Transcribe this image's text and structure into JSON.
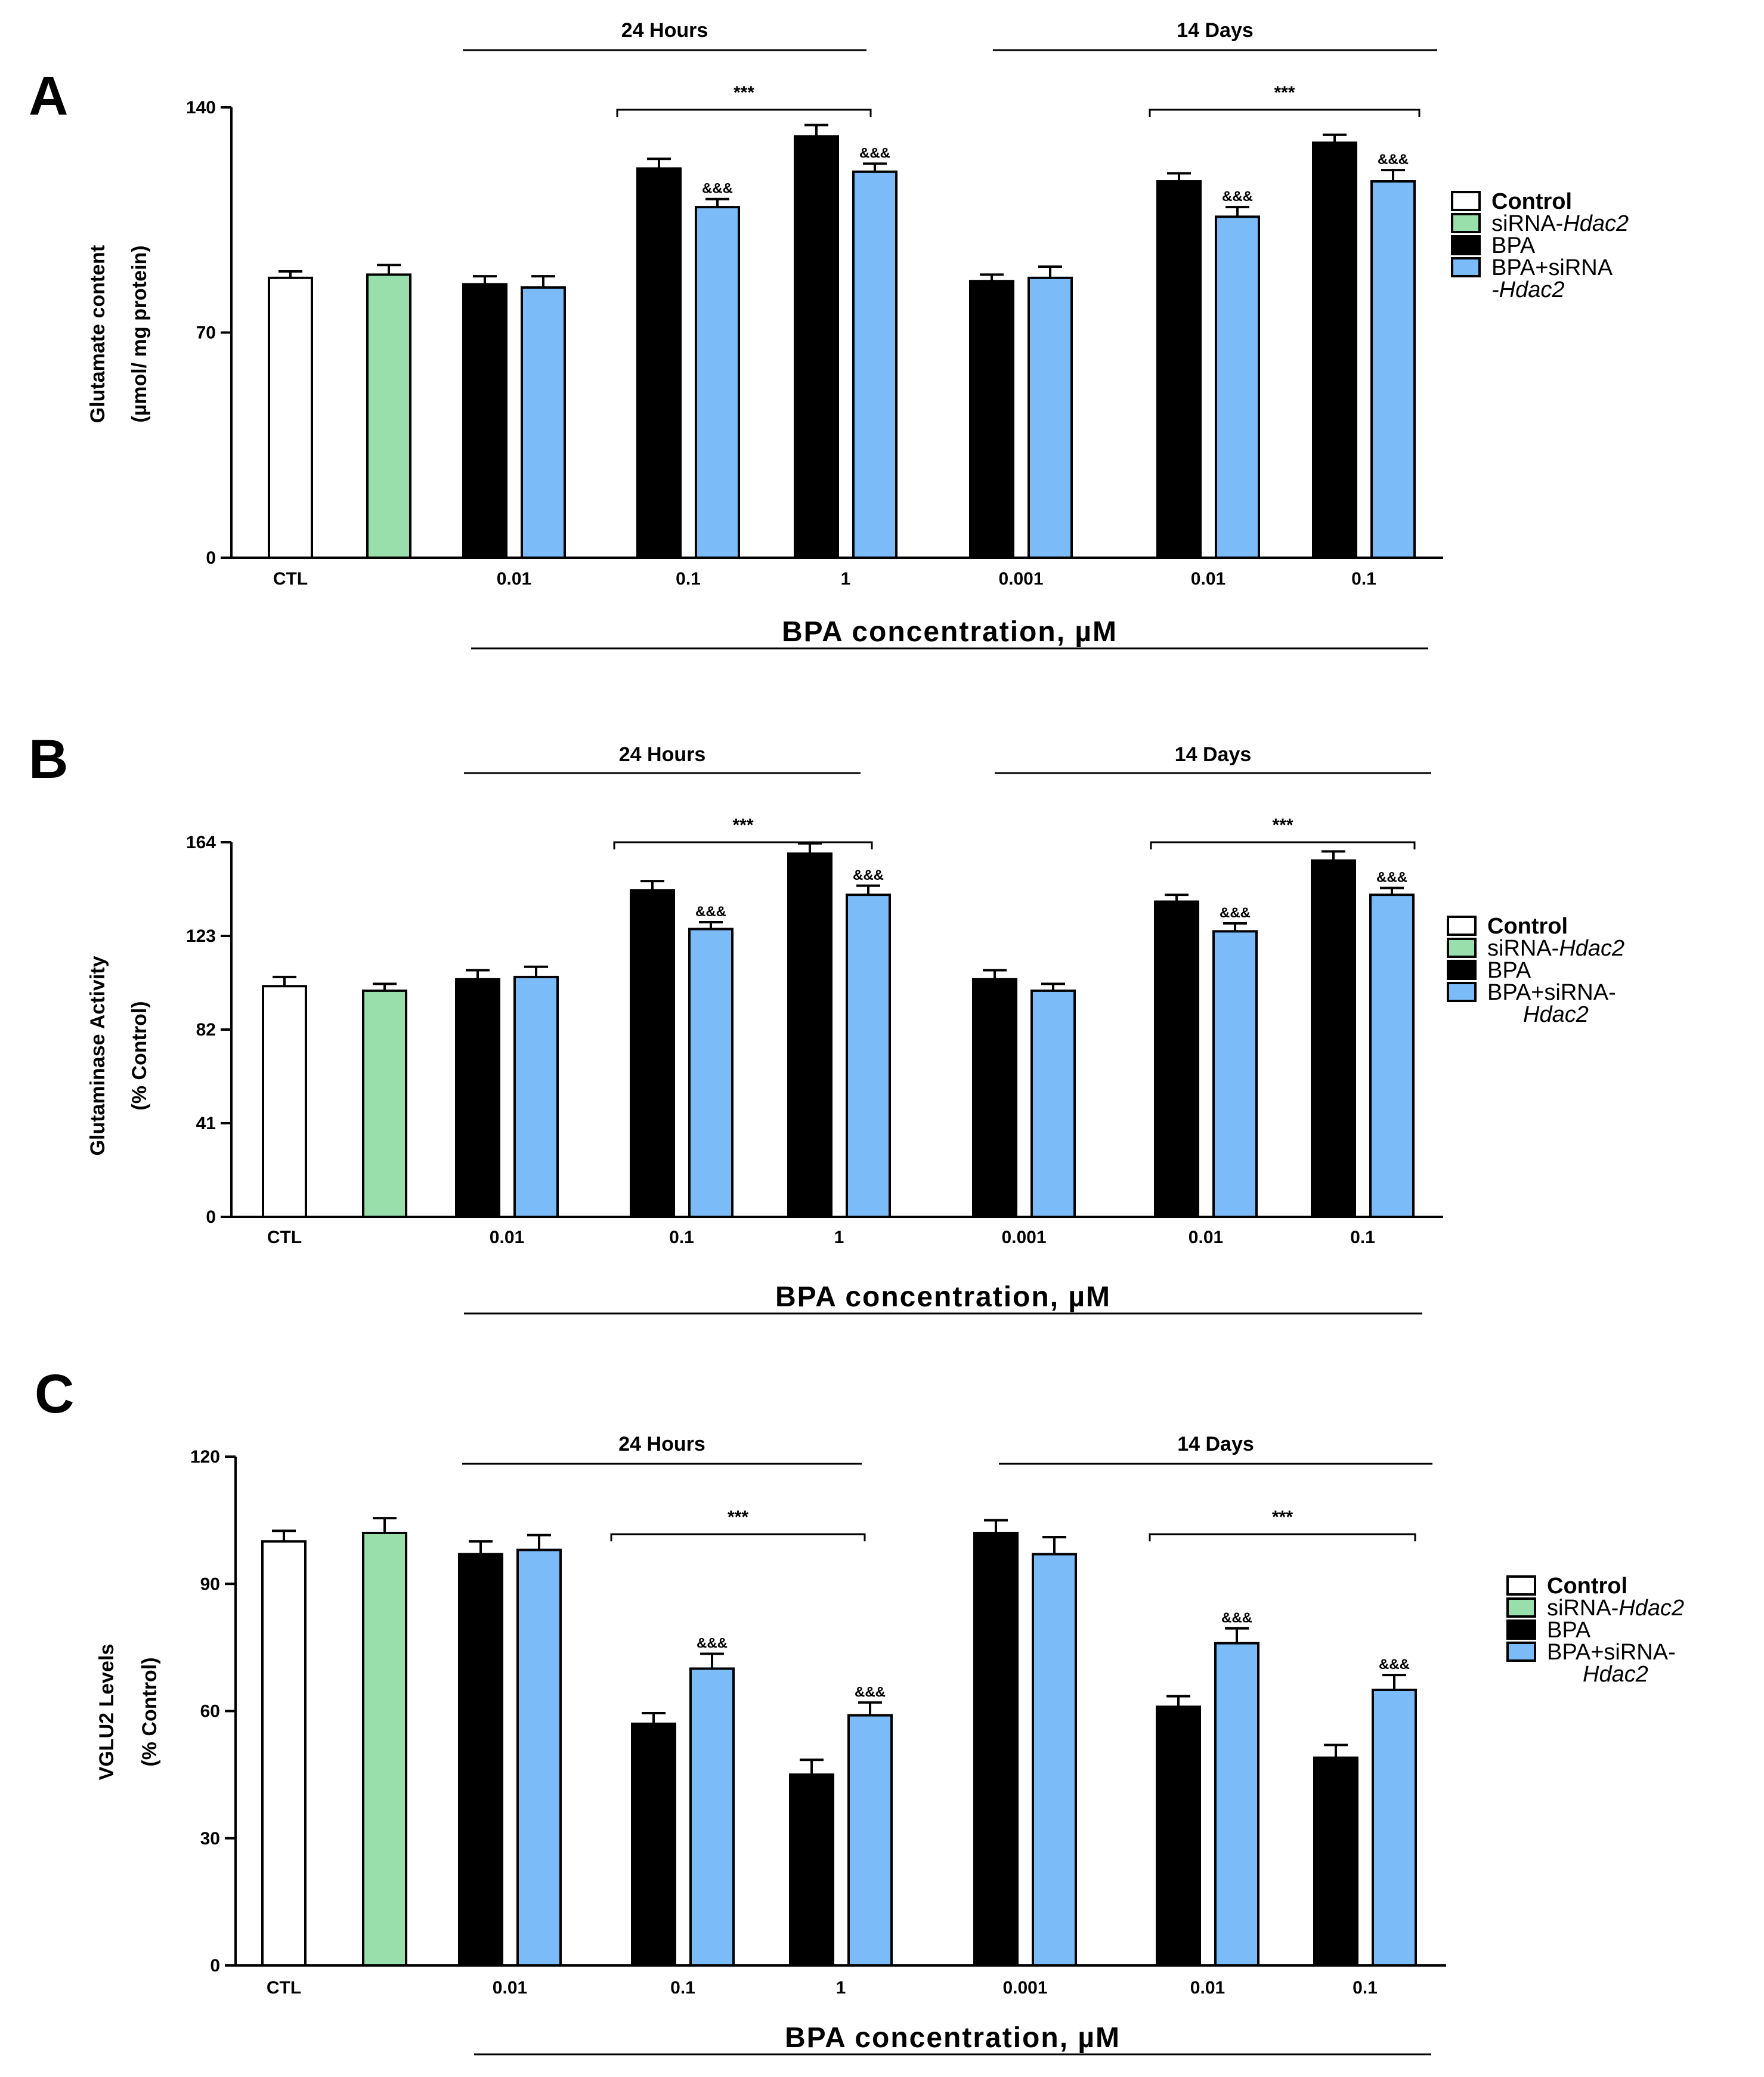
{
  "colors": {
    "control": "#ffffff",
    "siRNA": "#98dfac",
    "bpa": "#000000",
    "bpa_siRNA": "#7bbbf7"
  },
  "chart_data": [
    {
      "type": "bar",
      "panel": "A",
      "ylabel": "Glutamate content (µmol/ mg protein)",
      "ylabel_lines": [
        "Glutamate content",
        "(µmol/ mg protein)"
      ],
      "xlabel": "BPA concentration, µM",
      "ylim": [
        0,
        140
      ],
      "yticks": [
        0,
        70,
        140
      ],
      "groups": [
        "24 Hours",
        "14 Days"
      ],
      "significance": [
        "***",
        "***"
      ],
      "categories": [
        "CTL",
        "",
        "0.01",
        "0.1",
        "1",
        "0.001",
        "0.01",
        "0.1"
      ],
      "legend": [
        "Control",
        "siRNA-Hdac2",
        "BPA",
        "BPA+siRNA -Hdac2"
      ],
      "legend_lines": [
        [
          "Control"
        ],
        [
          "siRNA-",
          "Hdac2"
        ],
        [
          "BPA"
        ],
        [
          "BPA+siRNA",
          "-Hdac2"
        ]
      ],
      "bars": [
        {
          "series": "Control",
          "category": "CTL",
          "value": 87,
          "err": 2,
          "mark": ""
        },
        {
          "series": "siRNA-Hdac2",
          "category": "",
          "value": 88,
          "err": 3,
          "mark": ""
        },
        {
          "series": "BPA",
          "category": "0.01",
          "value": 85,
          "err": 2.5,
          "mark": ""
        },
        {
          "series": "BPA+siRNA-Hdac2",
          "category": "0.01",
          "value": 84,
          "err": 3.5,
          "mark": ""
        },
        {
          "series": "BPA",
          "category": "0.1",
          "value": 121,
          "err": 3,
          "mark": ""
        },
        {
          "series": "BPA+siRNA-Hdac2",
          "category": "0.1",
          "value": 109,
          "err": 2.5,
          "mark": "&&&"
        },
        {
          "series": "BPA",
          "category": "1",
          "value": 131,
          "err": 3.5,
          "mark": ""
        },
        {
          "series": "BPA+siRNA-Hdac2",
          "category": "1",
          "value": 120,
          "err": 2.5,
          "mark": "&&&"
        },
        {
          "series": "BPA",
          "category": "0.001",
          "value": 86,
          "err": 2,
          "mark": ""
        },
        {
          "series": "BPA+siRNA-Hdac2",
          "category": "0.001",
          "value": 87,
          "err": 3.5,
          "mark": ""
        },
        {
          "series": "BPA",
          "category": "0.01",
          "value": 117,
          "err": 2.5,
          "mark": ""
        },
        {
          "series": "BPA+siRNA-Hdac2",
          "category": "0.01",
          "value": 106,
          "err": 3,
          "mark": "&&&"
        },
        {
          "series": "BPA",
          "category": "0.1",
          "value": 129,
          "err": 2.5,
          "mark": ""
        },
        {
          "series": "BPA+siRNA-Hdac2",
          "category": "0.1",
          "value": 117,
          "err": 3.5,
          "mark": "&&&"
        }
      ]
    },
    {
      "type": "bar",
      "panel": "B",
      "ylabel": "Glutaminase Activity (% Control)",
      "ylabel_lines": [
        "Glutaminase Activity",
        "(% Control)"
      ],
      "xlabel": "BPA concentration, µM",
      "ylim": [
        0,
        164
      ],
      "yticks": [
        0,
        41,
        82,
        123,
        164
      ],
      "groups": [
        "24 Hours",
        "14 Days"
      ],
      "significance": [
        "***",
        "***"
      ],
      "categories": [
        "CTL",
        "",
        "0.01",
        "0.1",
        "1",
        "0.001",
        "0.01",
        "0.1"
      ],
      "legend": [
        "Control",
        "siRNA-Hdac2",
        "BPA",
        "BPA+siRNA- Hdac2"
      ],
      "legend_lines": [
        [
          "Control"
        ],
        [
          "siRNA-",
          "Hdac2"
        ],
        [
          "BPA"
        ],
        [
          "BPA+siRNA-",
          "Hdac2"
        ]
      ],
      "bars": [
        {
          "series": "Control",
          "category": "CTL",
          "value": 101,
          "err": 4,
          "mark": ""
        },
        {
          "series": "siRNA-Hdac2",
          "category": "",
          "value": 99,
          "err": 3,
          "mark": ""
        },
        {
          "series": "BPA",
          "category": "0.01",
          "value": 104,
          "err": 4,
          "mark": ""
        },
        {
          "series": "BPA+siRNA-Hdac2",
          "category": "0.01",
          "value": 105,
          "err": 4.5,
          "mark": ""
        },
        {
          "series": "BPA",
          "category": "0.1",
          "value": 143,
          "err": 4,
          "mark": ""
        },
        {
          "series": "BPA+siRNA-Hdac2",
          "category": "0.1",
          "value": 126,
          "err": 3,
          "mark": "&&&"
        },
        {
          "series": "BPA",
          "category": "1",
          "value": 159,
          "err": 4.5,
          "mark": ""
        },
        {
          "series": "BPA+siRNA-Hdac2",
          "category": "1",
          "value": 141,
          "err": 4,
          "mark": "&&&"
        },
        {
          "series": "BPA",
          "category": "0.001",
          "value": 104,
          "err": 4,
          "mark": ""
        },
        {
          "series": "BPA+siRNA-Hdac2",
          "category": "0.001",
          "value": 99,
          "err": 3,
          "mark": ""
        },
        {
          "series": "BPA",
          "category": "0.01",
          "value": 138,
          "err": 3,
          "mark": ""
        },
        {
          "series": "BPA+siRNA-Hdac2",
          "category": "0.01",
          "value": 125,
          "err": 3.5,
          "mark": "&&&"
        },
        {
          "series": "BPA",
          "category": "0.1",
          "value": 156,
          "err": 4,
          "mark": ""
        },
        {
          "series": "BPA+siRNA-Hdac2",
          "category": "0.1",
          "value": 141,
          "err": 3,
          "mark": "&&&"
        }
      ]
    },
    {
      "type": "bar",
      "panel": "C",
      "ylabel": "VGLU2 Levels (% Control)",
      "ylabel_lines": [
        "VGLU2  Levels",
        "(% Control)"
      ],
      "xlabel": "BPA concentration, µM",
      "ylim": [
        0,
        120
      ],
      "yticks": [
        0,
        30,
        60,
        90,
        120
      ],
      "groups": [
        "24 Hours",
        "14 Days"
      ],
      "significance": [
        "***",
        "***"
      ],
      "categories": [
        "CTL",
        "",
        "0.01",
        "0.1",
        "1",
        "0.001",
        "0.01",
        "0.1"
      ],
      "legend": [
        "Control",
        "siRNA-Hdac2",
        "BPA",
        "BPA+siRNA- Hdac2"
      ],
      "legend_lines": [
        [
          "Control"
        ],
        [
          "siRNA-",
          "Hdac2"
        ],
        [
          "BPA"
        ],
        [
          "BPA+siRNA-",
          "Hdac2"
        ]
      ],
      "bars": [
        {
          "series": "Control",
          "category": "CTL",
          "value": 100,
          "err": 2.5,
          "mark": ""
        },
        {
          "series": "siRNA-Hdac2",
          "category": "",
          "value": 102,
          "err": 3.5,
          "mark": ""
        },
        {
          "series": "BPA",
          "category": "0.01",
          "value": 97,
          "err": 3,
          "mark": ""
        },
        {
          "series": "BPA+siRNA-Hdac2",
          "category": "0.01",
          "value": 98,
          "err": 3.5,
          "mark": ""
        },
        {
          "series": "BPA",
          "category": "0.1",
          "value": 57,
          "err": 2.5,
          "mark": ""
        },
        {
          "series": "BPA+siRNA-Hdac2",
          "category": "0.1",
          "value": 70,
          "err": 3.5,
          "mark": "&&&"
        },
        {
          "series": "BPA",
          "category": "1",
          "value": 45,
          "err": 3.5,
          "mark": ""
        },
        {
          "series": "BPA+siRNA-Hdac2",
          "category": "1",
          "value": 59,
          "err": 3,
          "mark": "&&&"
        },
        {
          "series": "BPA",
          "category": "0.001",
          "value": 102,
          "err": 3,
          "mark": ""
        },
        {
          "series": "BPA+siRNA-Hdac2",
          "category": "0.001",
          "value": 97,
          "err": 4,
          "mark": ""
        },
        {
          "series": "BPA",
          "category": "0.01",
          "value": 61,
          "err": 2.5,
          "mark": ""
        },
        {
          "series": "BPA+siRNA-Hdac2",
          "category": "0.01",
          "value": 76,
          "err": 3.5,
          "mark": "&&&"
        },
        {
          "series": "BPA",
          "category": "0.1",
          "value": 49,
          "err": 3,
          "mark": ""
        },
        {
          "series": "BPA+siRNA-Hdac2",
          "category": "0.1",
          "value": 65,
          "err": 3.5,
          "mark": "&&&"
        }
      ]
    }
  ]
}
